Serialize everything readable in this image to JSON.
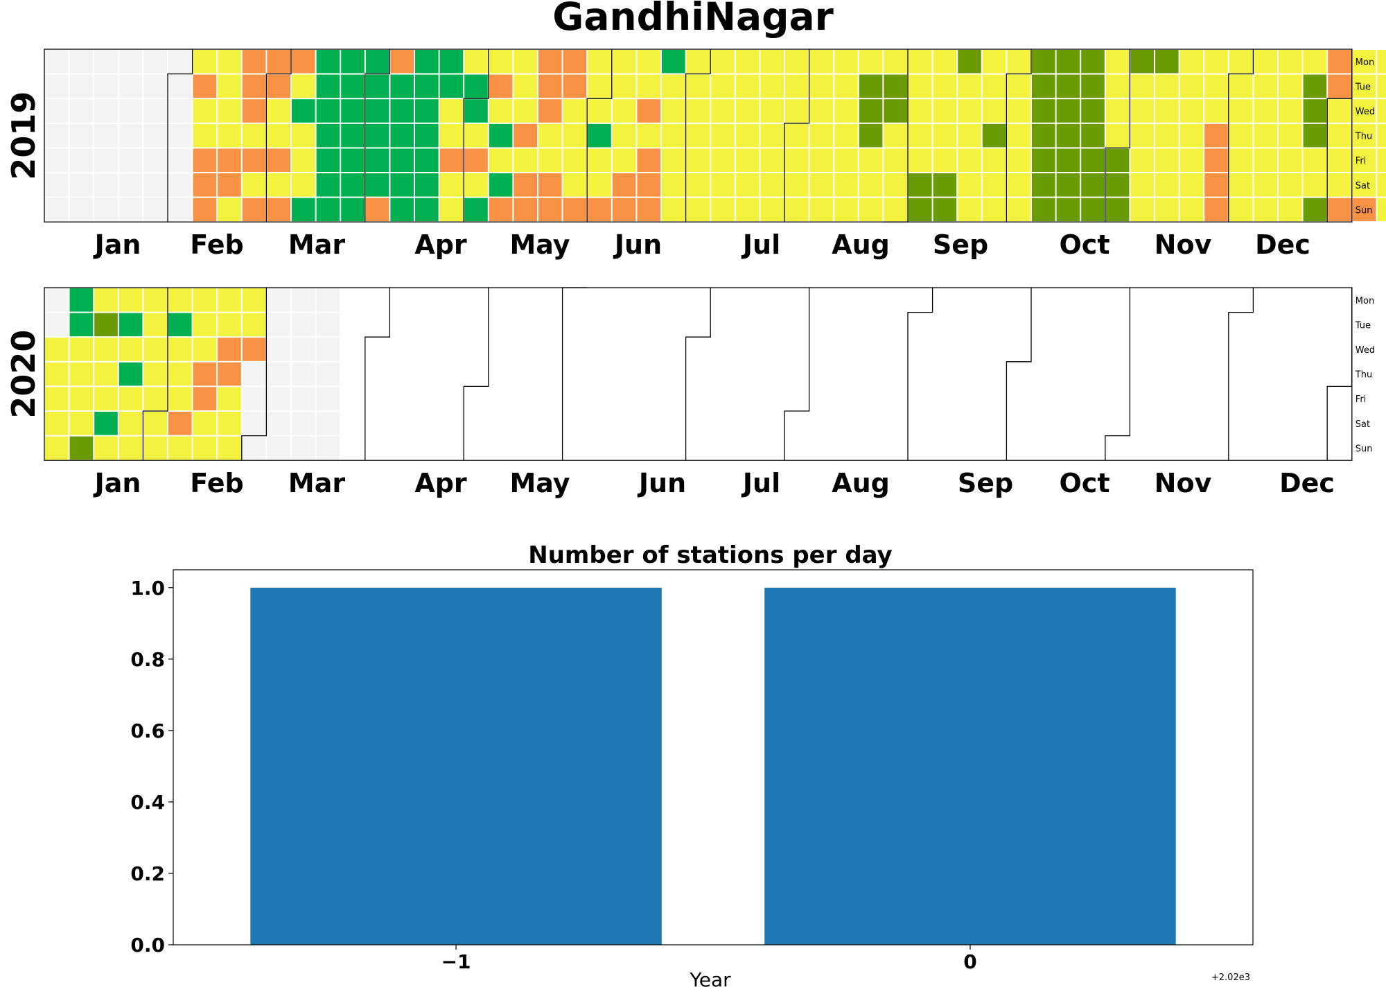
{
  "figure": {
    "title": "GandhiNagar"
  },
  "colors": {
    "empty": "#f4f4f4",
    "good": "#00b050",
    "satisfactory": "#6a9a04",
    "moderate": "#f2f23f",
    "poor": "#f79244",
    "very_poor": "#7a3b3f",
    "bar": "#1f77b4"
  },
  "chart_data": [
    {
      "type": "heatmap",
      "year_label": "2019",
      "weekday_labels": [
        "Mon",
        "Tue",
        "Wed",
        "Thu",
        "Fri",
        "Sat",
        "Sun"
      ],
      "month_labels": [
        "Jan",
        "Feb",
        "Mar",
        "Apr",
        "May",
        "Jun",
        "Jul",
        "Aug",
        "Sep",
        "Oct",
        "Nov",
        "Dec"
      ],
      "legend_codes": {
        "0": "empty",
        "1": "good",
        "2": "satisfactory",
        "3": "moderate",
        "4": "poor",
        "5": "very_poor"
      },
      "week_columns": [
        "0000000",
        "0000000",
        "0000000",
        "0000000",
        "0000000",
        "0000000",
        "3433444",
        "3333443",
        "4443434",
        "4433434",
        "4313331",
        "1111111",
        "1111111",
        "1111114",
        "4111111",
        "1111111",
        "1133433",
        "3113431",
        "3431314",
        "3334344",
        "4443344",
        "4433334",
        "3331334",
        "3333344",
        "3343444",
        "1333333",
        "3333333",
        "3333333",
        "3333333",
        "3333333",
        "3333333",
        "3333333",
        "3333333",
        "3222333",
        "3223333",
        "3333322",
        "3333322",
        "2333333",
        "3332333",
        "3333333",
        "2222222",
        "2222222",
        "2222222",
        "3333222",
        "2333333",
        "2333333",
        "3333333",
        "3334444",
        "3333333",
        "3333333",
        "3333333",
        "3222332",
        "4433334",
        "3333334",
        "3333333",
        "3333333",
        "4344333",
        "4333344",
        "3333333",
        "3333333",
        "3333333",
        "3333333",
        "3333333",
        "3333333",
        "3333333",
        "3333333",
        "3333233",
        "3333433",
        "3333333",
        "11000000"
      ]
    },
    {
      "type": "heatmap",
      "year_label": "2020",
      "weekday_labels": [
        "Mon",
        "Tue",
        "Wed",
        "Thu",
        "Fri",
        "Sat",
        "Sun"
      ],
      "month_labels": [
        "Jan",
        "Feb",
        "Mar",
        "Apr",
        "May",
        "Jun",
        "Jul",
        "Aug",
        "Sep",
        "Oct",
        "Nov",
        "Dec"
      ],
      "legend_codes": {
        "0": "empty",
        "1": "good",
        "2": "satisfactory",
        "3": "moderate",
        "4": "poor",
        "5": "very_poor"
      },
      "week_columns": [
        "0033333",
        "1133332",
        "3233313",
        "3131333",
        "3333333",
        "3133343",
        "3334433",
        "3344333",
        "3340000",
        "0000000",
        "0000000",
        "0000000"
      ]
    },
    {
      "type": "bar",
      "title": "Number of stations per day",
      "xlabel": "Year",
      "ylabel": "",
      "x": [
        -1,
        0
      ],
      "x_tick_labels": [
        "−1",
        "0"
      ],
      "x_offset_text": "+2.02e3",
      "values": [
        1.0,
        1.0
      ],
      "ylim": [
        0,
        1.05
      ],
      "y_ticks": [
        "0.0",
        "0.2",
        "0.4",
        "0.6",
        "0.8",
        "1.0"
      ],
      "grid": false
    }
  ]
}
